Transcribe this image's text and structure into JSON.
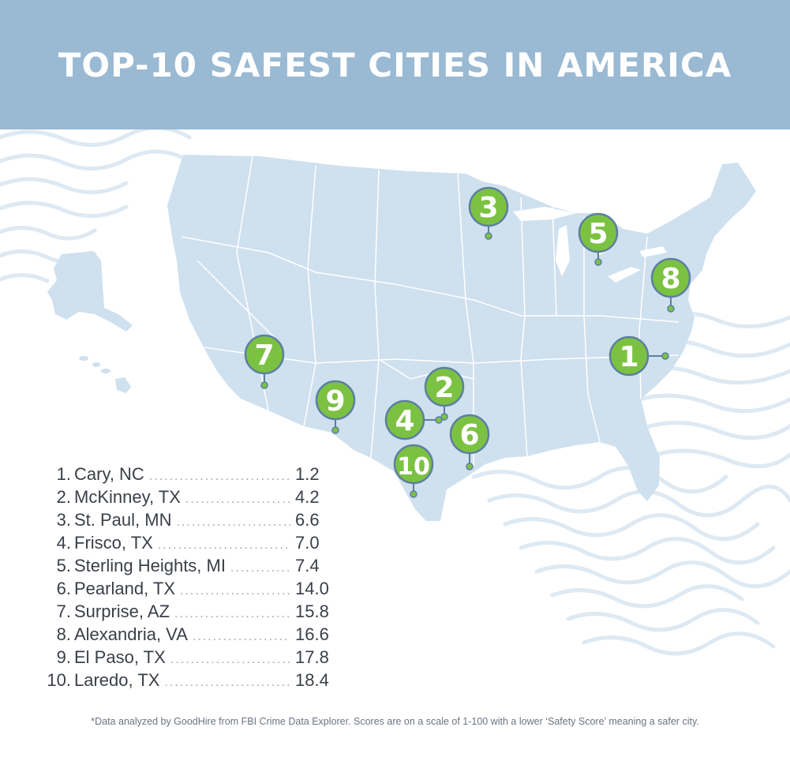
{
  "title": "TOP-10 SAFEST CITIES IN AMERICA",
  "colors": {
    "header": "#9ab9d3",
    "map_fill": "#cfe0ef",
    "state_border": "#ffffff",
    "marker_green": "#7cc242",
    "marker_stroke": "#5c7fa0",
    "text": "#3a3f47"
  },
  "cities": [
    {
      "rank": "1.",
      "name": "Cary, NC",
      "score": "1.2",
      "marker": "1"
    },
    {
      "rank": "2.",
      "name": "McKinney, TX",
      "score": "4.2",
      "marker": "2"
    },
    {
      "rank": "3.",
      "name": "St. Paul, MN",
      "score": "6.6",
      "marker": "3"
    },
    {
      "rank": "4.",
      "name": "Frisco, TX",
      "score": "7.0",
      "marker": "4"
    },
    {
      "rank": "5.",
      "name": "Sterling Heights, MI",
      "score": "7.4",
      "marker": "5"
    },
    {
      "rank": "6.",
      "name": "Pearland, TX",
      "score": "14.0",
      "marker": "6"
    },
    {
      "rank": "7.",
      "name": "Surprise, AZ",
      "score": "15.8",
      "marker": "7"
    },
    {
      "rank": "8.",
      "name": "Alexandria, VA",
      "score": "16.6",
      "marker": "8"
    },
    {
      "rank": "9.",
      "name": "El Paso, TX",
      "score": "17.8",
      "marker": "9"
    },
    {
      "rank": "10.",
      "name": "Laredo, TX",
      "score": "18.4",
      "marker": "10"
    }
  ],
  "footnote": "*Data analyzed by GoodHire from FBI Crime Data Explorer. Scores are on a scale of 1-100 with a lower ‘Safety Score’ meaning a safer city."
}
